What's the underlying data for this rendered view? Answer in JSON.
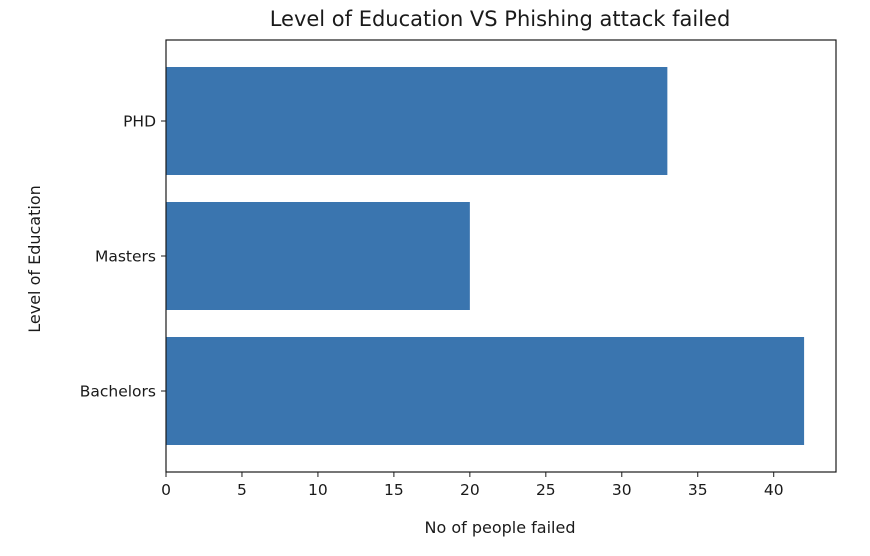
{
  "chart_data": {
    "type": "bar",
    "orientation": "horizontal",
    "title": "Level of Education VS Phishing attack failed",
    "xlabel": "No of people failed",
    "ylabel": "Level of Education",
    "categories": [
      "Bachelors",
      "Masters",
      "PHD"
    ],
    "values": [
      42,
      20,
      33
    ],
    "xlim": [
      0,
      44.1
    ],
    "xticks": [
      0,
      5,
      10,
      15,
      20,
      25,
      30,
      35,
      40
    ],
    "grid": false,
    "legend": "none",
    "bar_color": "#3a75af"
  }
}
